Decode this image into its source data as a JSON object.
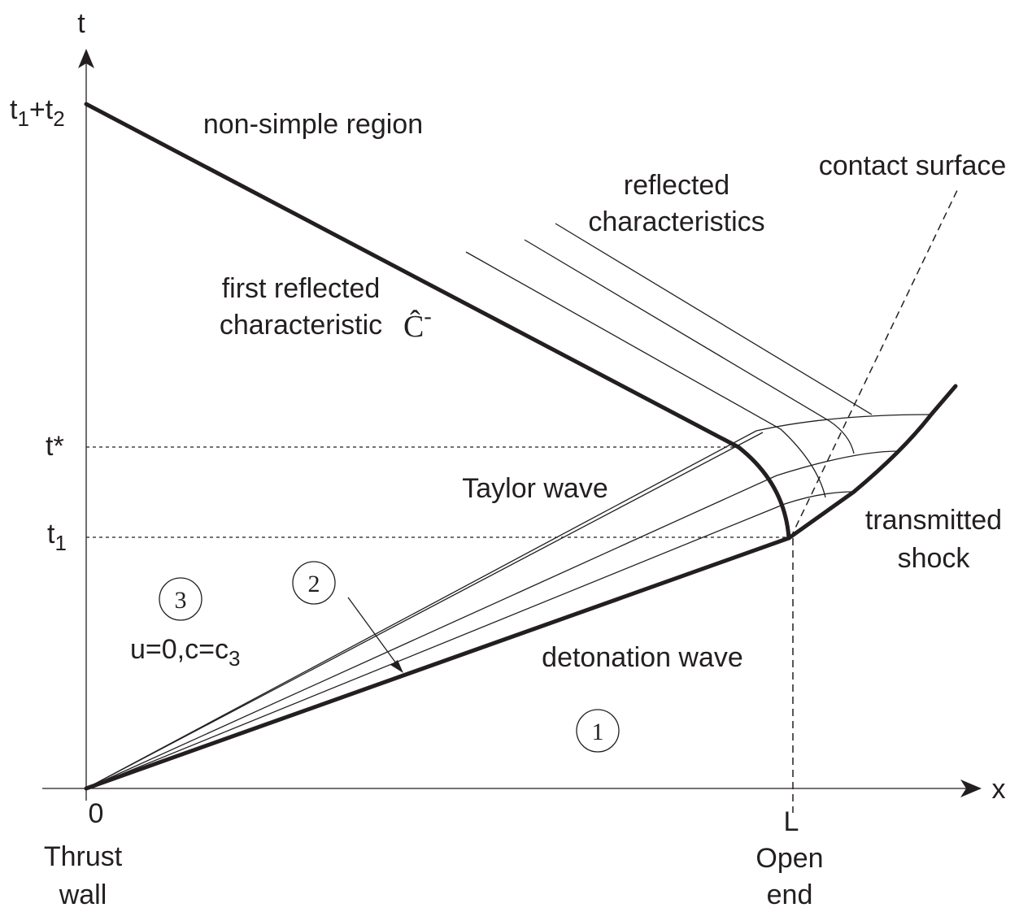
{
  "axes": {
    "t": "t",
    "x": "x",
    "origin": "0",
    "L": "L"
  },
  "time_marks": {
    "t1_plus_t2": [
      "t",
      "1",
      "+t",
      "2"
    ],
    "t_star": "t*",
    "t1": [
      "t",
      "1"
    ]
  },
  "labels": {
    "non_simple_region": "non-simple region",
    "reflected_characteristics": [
      "reflected",
      "characteristics"
    ],
    "contact_surface": "contact surface",
    "first_reflected_characteristic": [
      "first reflected",
      "characteristic"
    ],
    "c_hat_minus": [
      "Ĉ",
      "-"
    ],
    "taylor_wave": "Taylor wave",
    "transmitted_shock": [
      "transmitted",
      "shock"
    ],
    "detonation_wave": "detonation wave",
    "region3_state": [
      "u=0,c=c",
      "3"
    ],
    "thrust_wall": [
      "Thrust",
      "wall"
    ],
    "open_end": [
      "Open",
      "end"
    ]
  },
  "regions": [
    "1",
    "2",
    "3"
  ]
}
